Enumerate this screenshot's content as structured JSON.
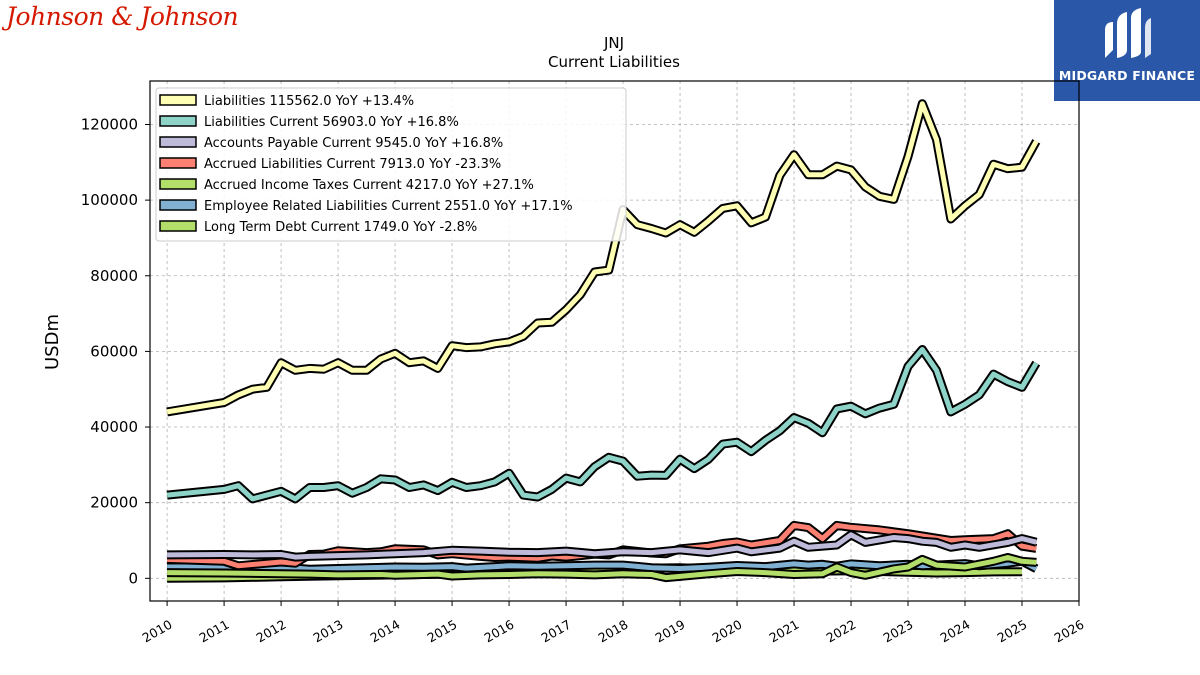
{
  "branding": {
    "company_logo_text": "Johnson & Johnson",
    "partner_logo_text": "MIDGARD FINANCE",
    "partner_color": "#2b57a8"
  },
  "chart_data": {
    "type": "line",
    "title": "JNJ",
    "subtitle": "Current  Liabilities",
    "xlabel": "",
    "ylabel": "USDm",
    "xlim": [
      2009.7,
      2026.0
    ],
    "ylim": [
      -6000,
      131500
    ],
    "x_ticks": [
      "2010",
      "2011",
      "2012",
      "2013",
      "2014",
      "2015",
      "2016",
      "2017",
      "2018",
      "2019",
      "2020",
      "2021",
      "2022",
      "2023",
      "2024",
      "2025",
      "2026"
    ],
    "y_ticks": [
      0,
      20000,
      40000,
      60000,
      80000,
      100000,
      120000
    ],
    "grid": true,
    "legend_position": "top-left",
    "series": [
      {
        "name": "Liabilities",
        "legend": "Liabilities  115562.0 YoY +13.4%",
        "color": "#ffffb3",
        "x": [
          2010.0,
          2011.0,
          2011.25,
          2011.5,
          2011.75,
          2012.0,
          2012.25,
          2012.5,
          2012.75,
          2013.0,
          2013.25,
          2013.5,
          2013.75,
          2014.0,
          2014.25,
          2014.5,
          2014.75,
          2015.0,
          2015.25,
          2015.5,
          2015.75,
          2016.0,
          2016.25,
          2016.5,
          2016.75,
          2017.0,
          2017.25,
          2017.5,
          2017.75,
          2018.0,
          2018.25,
          2018.5,
          2018.75,
          2019.0,
          2019.25,
          2019.5,
          2019.75,
          2020.0,
          2020.25,
          2020.5,
          2020.75,
          2021.0,
          2021.25,
          2021.5,
          2021.75,
          2022.0,
          2022.25,
          2022.5,
          2022.75,
          2023.0,
          2023.25,
          2023.5,
          2023.75,
          2024.0,
          2024.25,
          2024.5,
          2024.75,
          2025.0,
          2025.25
        ],
        "values": [
          44000,
          46500,
          48500,
          50000,
          50500,
          57000,
          55000,
          55500,
          55300,
          57000,
          55000,
          55000,
          58000,
          59500,
          57000,
          57500,
          55500,
          61500,
          61000,
          61200,
          62000,
          62500,
          64000,
          67500,
          67700,
          71000,
          75000,
          81000,
          81500,
          97500,
          93500,
          92500,
          91300,
          93500,
          91500,
          94500,
          97800,
          98500,
          94000,
          95500,
          106500,
          112000,
          106700,
          106700,
          109000,
          108000,
          103500,
          101000,
          100200,
          111500,
          125500,
          116000,
          95000,
          98500,
          101500,
          109500,
          108300,
          108700,
          115562
        ]
      },
      {
        "name": "Liabilities Current",
        "legend": "Liabilities Current  56903.0 YoY +16.8%",
        "color": "#8dd3c7",
        "x": [
          2010.0,
          2011.0,
          2011.25,
          2011.5,
          2011.75,
          2012.0,
          2012.25,
          2012.5,
          2012.75,
          2013.0,
          2013.25,
          2013.5,
          2013.75,
          2014.0,
          2014.25,
          2014.5,
          2014.75,
          2015.0,
          2015.25,
          2015.5,
          2015.75,
          2016.0,
          2016.25,
          2016.5,
          2016.75,
          2017.0,
          2017.25,
          2017.5,
          2017.75,
          2018.0,
          2018.25,
          2018.5,
          2018.75,
          2019.0,
          2019.25,
          2019.5,
          2019.75,
          2020.0,
          2020.25,
          2020.5,
          2020.75,
          2021.0,
          2021.25,
          2021.5,
          2021.75,
          2022.0,
          2022.25,
          2022.5,
          2022.75,
          2023.0,
          2023.25,
          2023.5,
          2023.75,
          2024.0,
          2024.25,
          2024.5,
          2024.75,
          2025.0,
          2025.25
        ],
        "values": [
          22000,
          23500,
          24500,
          21000,
          22000,
          23000,
          21000,
          24000,
          24000,
          24500,
          22500,
          24000,
          26300,
          26000,
          24000,
          24700,
          23200,
          25400,
          24000,
          24500,
          25500,
          27800,
          22000,
          21500,
          23500,
          26500,
          25500,
          29500,
          32000,
          31000,
          27000,
          27300,
          27200,
          31500,
          29000,
          31500,
          35500,
          36000,
          33500,
          36500,
          39000,
          42500,
          41000,
          38500,
          44800,
          45500,
          43500,
          45000,
          46000,
          56000,
          60500,
          55000,
          44000,
          46000,
          48500,
          54000,
          52000,
          50500,
          56903
        ]
      },
      {
        "name": "Accounts Payable Current",
        "legend": "Accounts Payable Current  9545.0 YoY +16.8%",
        "color": "#bebada",
        "x": [
          2010.0,
          2011.0,
          2011.5,
          2012.0,
          2012.25,
          2012.5,
          2013.0,
          2013.5,
          2014.0,
          2014.5,
          2015.0,
          2015.5,
          2016.0,
          2016.5,
          2017.0,
          2017.5,
          2018.0,
          2018.5,
          2019.0,
          2019.5,
          2020.0,
          2020.25,
          2020.75,
          2021.0,
          2021.25,
          2021.75,
          2022.0,
          2022.25,
          2022.75,
          2023.0,
          2023.25,
          2023.5,
          2023.75,
          2024.0,
          2024.25,
          2024.75,
          2025.0,
          2025.25
        ],
        "values": [
          6200,
          6300,
          6200,
          6300,
          5600,
          5800,
          6000,
          6200,
          6500,
          6800,
          7400,
          7200,
          6900,
          6800,
          7200,
          6500,
          7000,
          6800,
          7500,
          6800,
          8000,
          7000,
          8000,
          9800,
          8200,
          8800,
          11500,
          9500,
          10800,
          10500,
          9800,
          9500,
          8200,
          8800,
          8200,
          9500,
          10500,
          9545
        ]
      },
      {
        "name": "Accrued Liabilities Current",
        "legend": "Accrued Liabilities Current  7913.0 YoY -23.3%",
        "color": "#fb8072",
        "x": [
          2010.0,
          2011.0,
          2011.25,
          2011.75,
          2012.0,
          2012.25,
          2012.5,
          2012.75,
          2013.0,
          2013.5,
          2013.75,
          2014.0,
          2014.5,
          2014.75,
          2015.0,
          2015.5,
          2015.75,
          2016.0,
          2016.5,
          2016.75,
          2017.0,
          2017.5,
          2017.75,
          2018.0,
          2018.5,
          2018.75,
          2019.0,
          2019.5,
          2019.75,
          2020.0,
          2020.25,
          2020.75,
          2021.0,
          2021.25,
          2021.5,
          2021.75,
          2022.0,
          2022.5,
          2022.75,
          2023.0,
          2023.25,
          2023.75,
          2024.0,
          2024.5,
          2024.75,
          2025.0,
          2025.25
        ],
        "values": [
          5000,
          4500,
          3300,
          4000,
          4300,
          4000,
          6300,
          6400,
          7300,
          6800,
          7000,
          7800,
          7500,
          6200,
          6500,
          5800,
          5500,
          5600,
          5300,
          5900,
          5600,
          6400,
          6200,
          7500,
          6700,
          6500,
          7800,
          8500,
          9200,
          9600,
          8800,
          10000,
          14000,
          13400,
          10500,
          14000,
          13500,
          12800,
          12300,
          11800,
          11200,
          10000,
          10200,
          10500,
          11800,
          8500,
          7913
        ]
      },
      {
        "name": "Accrued Income Taxes Current",
        "legend": "Accrued Income Taxes Current  4217.0 YoY +27.1%",
        "color": "#b3de69",
        "x": [
          2010.0,
          2011.0,
          2012.0,
          2012.5,
          2013.0,
          2013.75,
          2014.0,
          2014.75,
          2015.0,
          2015.5,
          2016.0,
          2016.5,
          2017.0,
          2017.5,
          2018.0,
          2018.5,
          2018.75,
          2019.0,
          2019.5,
          2020.0,
          2020.5,
          2021.0,
          2021.5,
          2021.75,
          2022.0,
          2022.25,
          2022.75,
          2023.0,
          2023.25,
          2023.5,
          2024.0,
          2024.5,
          2024.75,
          2025.0,
          2025.25
        ],
        "values": [
          1500,
          1400,
          1200,
          1100,
          900,
          1000,
          800,
          1100,
          600,
          900,
          1000,
          1200,
          1100,
          900,
          1200,
          1000,
          200,
          500,
          1200,
          1800,
          1500,
          1000,
          1200,
          3000,
          1500,
          800,
          2500,
          3000,
          5000,
          3500,
          3000,
          4500,
          5500,
          4500,
          4217
        ]
      },
      {
        "name": "Employee Related Liabilities Current",
        "legend": "Employee Related Liabilities Current  2551.0 YoY +17.1%",
        "color": "#80b1d3",
        "x": [
          2010.0,
          2011.0,
          2011.25,
          2012.0,
          2012.5,
          2013.0,
          2013.5,
          2014.0,
          2014.5,
          2015.0,
          2015.25,
          2015.75,
          2016.0,
          2016.5,
          2017.0,
          2017.5,
          2018.0,
          2018.5,
          2019.0,
          2019.5,
          2020.0,
          2020.5,
          2021.0,
          2021.25,
          2021.5,
          2021.75,
          2022.0,
          2022.5,
          2023.0,
          2023.25,
          2023.5,
          2024.0,
          2024.25,
          2024.75,
          2025.0,
          2025.25
        ],
        "values": [
          3000,
          3100,
          2500,
          3000,
          2400,
          2600,
          2800,
          3000,
          2900,
          3100,
          2700,
          3100,
          3300,
          3200,
          3300,
          3500,
          3500,
          2800,
          2600,
          2900,
          3400,
          3100,
          3800,
          3500,
          3700,
          3200,
          3800,
          3300,
          3700,
          3300,
          3500,
          3900,
          3300,
          4000,
          4500,
          2551
        ]
      },
      {
        "name": "Long Term Debt Current",
        "legend": "Long Term Debt Current  1749.0 YoY -2.8%",
        "color": "#b3de69",
        "x": [
          2010.0,
          2011.0,
          2012.0,
          2013.0,
          2014.0,
          2015.0,
          2016.0,
          2017.0,
          2018.0,
          2018.5,
          2019.0,
          2019.5,
          2020.0,
          2020.5,
          2021.0,
          2021.5,
          2022.0,
          2022.5,
          2023.0,
          2023.5,
          2024.0,
          2024.5,
          2025.0
        ],
        "values": [
          0,
          100,
          400,
          700,
          900,
          1100,
          1400,
          1800,
          2200,
          2700,
          2800,
          2500,
          2300,
          2100,
          2000,
          1900,
          2000,
          1800,
          1600,
          1400,
          1500,
          1700,
          1749
        ]
      }
    ]
  }
}
